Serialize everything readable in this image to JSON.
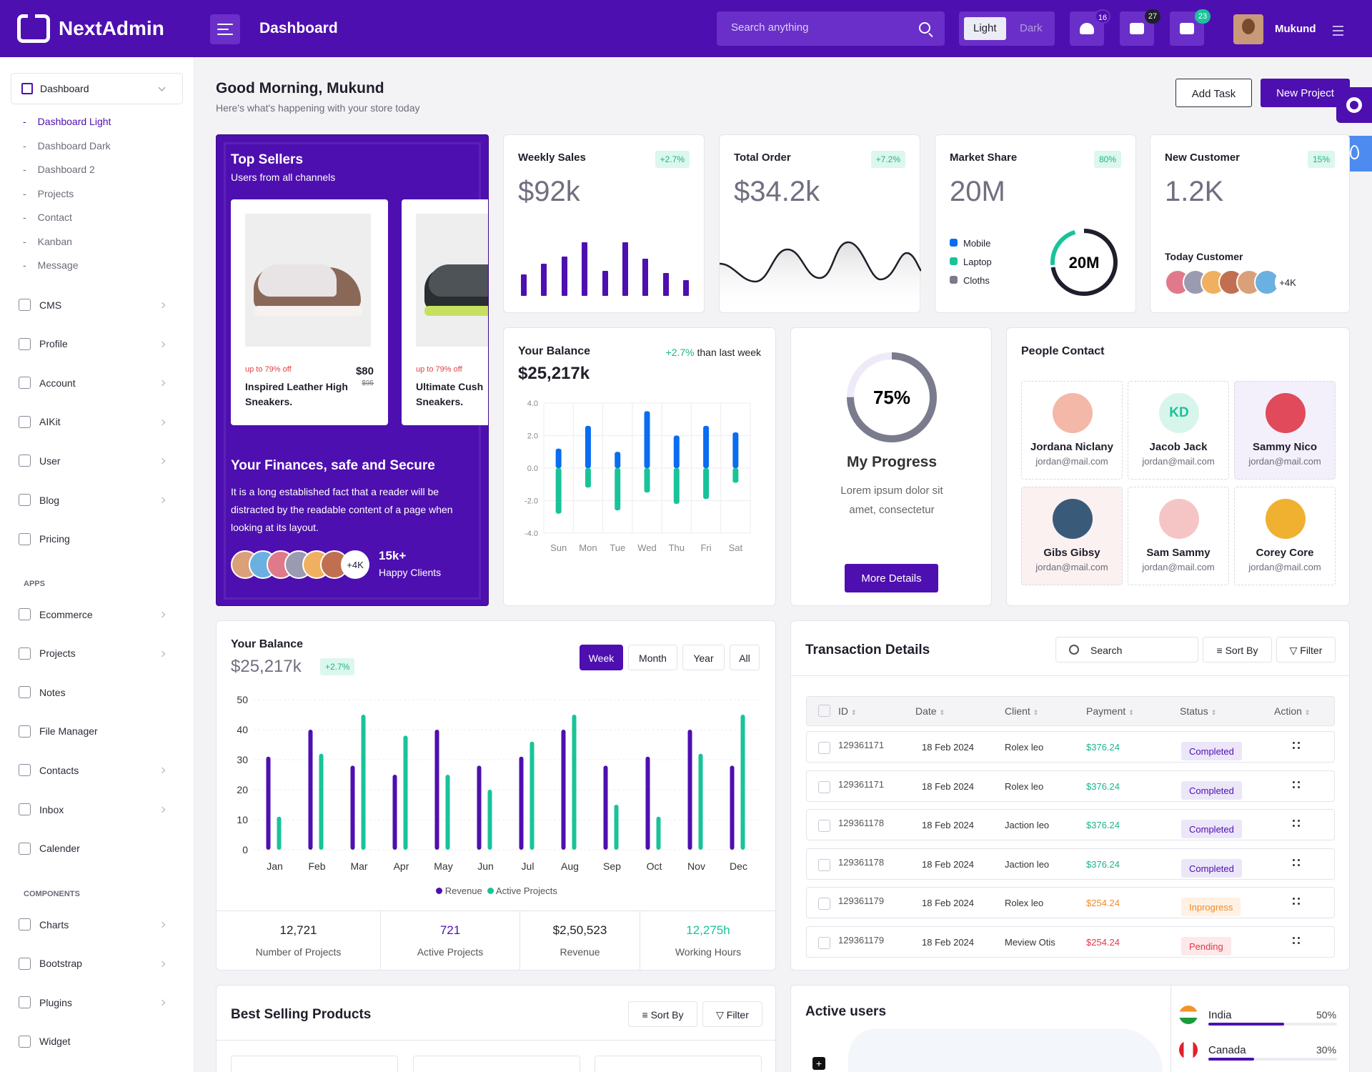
{
  "brand": {
    "name": "NextAdmin"
  },
  "header": {
    "title": "Dashboard",
    "search_placeholder": "Search anything",
    "theme_light": "Light",
    "theme_dark": "Dark",
    "notifications": "16",
    "messages": "27",
    "calendar": "23",
    "user": "Mukund"
  },
  "sidebar": {
    "selected": "Dashboard",
    "sub": [
      "Dashboard Light",
      "Dashboard Dark",
      "Dashboard 2",
      "Projects",
      "Contact",
      "Kanban",
      "Message"
    ],
    "main": [
      "CMS",
      "Profile",
      "Account",
      "AIKit",
      "User",
      "Blog",
      "Pricing"
    ],
    "apps_label": "APPS",
    "apps": [
      "Ecommerce",
      "Projects",
      "Notes",
      "File Manager",
      "Contacts",
      "Inbox",
      "Calender"
    ],
    "comp_label": "COMPONENTS",
    "components": [
      "Charts",
      "Bootstrap",
      "Plugins",
      "Widget"
    ]
  },
  "page": {
    "greeting": "Good Morning, Mukund",
    "subtitle": "Here's what's happening with your store today",
    "add_task": "Add Task",
    "new_project": "New Project"
  },
  "top_sellers": {
    "title": "Top Sellers",
    "subtitle": "Users from all channels",
    "products": [
      {
        "off": "up to 79% off",
        "price": "$80",
        "old": "$95",
        "name": "Inspired Leather High Sneakers."
      },
      {
        "off": "up to 79% off",
        "name": "Ultimate Cush Sneakers."
      }
    ],
    "fin_title": "Your Finances, safe and Secure",
    "fin_text": "It is a long established fact that a reader will be distracted by the readable content of a page when looking at its layout.",
    "more": "+4K",
    "clients_count": "15k+",
    "clients_label": "Happy Clients"
  },
  "stats": [
    {
      "title": "Weekly Sales",
      "badge": "+2.7%",
      "value": "$92k"
    },
    {
      "title": "Total Order",
      "badge": "+7.2%",
      "value": "$34.2k"
    },
    {
      "title": "Market Share",
      "badge": "80%",
      "value": "20M",
      "legend": [
        "Mobile",
        "Laptop",
        "Cloths"
      ],
      "donut": "20M"
    },
    {
      "title": "New Customer",
      "badge": "15%",
      "value": "1.2K",
      "today": "Today Customer",
      "more": "+4K"
    }
  ],
  "weekly_sales_bars": [
    {
      "value": 0.3
    },
    {
      "value": 0.45
    },
    {
      "value": 0.55
    },
    {
      "value": 0.75
    },
    {
      "value": 0.35
    },
    {
      "value": 0.75
    },
    {
      "value": 0.52
    },
    {
      "value": 0.32
    },
    {
      "value": 0.22
    }
  ],
  "balance_small": {
    "title": "Your Balance",
    "change": "+2.7%",
    "change_text": "than last week",
    "value": "$25,217k"
  },
  "chart_data": [
    {
      "type": "bar",
      "name": "balance-weekly",
      "categories": [
        "Sun",
        "Mon",
        "Tue",
        "Wed",
        "Thu",
        "Fri",
        "Sat"
      ],
      "series": [
        {
          "values": [
            1.2,
            2.6,
            1.0,
            3.5,
            2.0,
            2.6,
            2.2
          ]
        },
        {
          "values": [
            -2.8,
            -1.2,
            -2.6,
            -1.5,
            -2.2,
            -1.9,
            -0.9
          ]
        }
      ],
      "yticks": [
        "4.0",
        "2.0",
        "0.0",
        "-2.0",
        "-4.0"
      ],
      "ylim": [
        -4,
        4
      ]
    },
    {
      "type": "bar",
      "name": "balance-monthly",
      "categories": [
        "Jan",
        "Feb",
        "Mar",
        "Apr",
        "May",
        "Jun",
        "Jul",
        "Aug",
        "Sep",
        "Oct",
        "Nov",
        "Dec"
      ],
      "series": [
        {
          "name": "Revenue",
          "values": [
            31,
            40,
            28,
            25,
            40,
            28,
            31,
            40,
            28,
            31,
            40,
            28
          ]
        },
        {
          "name": "Active Projects",
          "values": [
            11,
            32,
            45,
            38,
            25,
            20,
            36,
            45,
            15,
            11,
            32,
            45
          ]
        }
      ],
      "yticks": [
        "50",
        "40",
        "30",
        "20",
        "10",
        "0"
      ],
      "ylim": [
        0,
        50
      ]
    }
  ],
  "progress": {
    "percent_value": 75,
    "percent": "75%",
    "title": "My Progress",
    "text": "Lorem ipsum dolor sit amet, consectetur",
    "button": "More Details"
  },
  "people": {
    "title": "People Contact",
    "list": [
      {
        "name": "Jordana Niclany",
        "email": "jordan@mail.com"
      },
      {
        "name": "Jacob Jack",
        "email": "jordan@mail.com",
        "initials": "KD"
      },
      {
        "name": "Sammy Nico",
        "email": "jordan@mail.com"
      },
      {
        "name": "Gibs Gibsy",
        "email": "jordan@mail.com"
      },
      {
        "name": "Sam Sammy",
        "email": "jordan@mail.com"
      },
      {
        "name": "Corey Core",
        "email": "jordan@mail.com"
      }
    ]
  },
  "balance_big": {
    "title": "Your Balance",
    "value": "$25,217k",
    "badge": "+2.7%",
    "tabs": [
      "Week",
      "Month",
      "Year",
      "All"
    ],
    "legend": [
      "Revenue",
      "Active Projects"
    ],
    "stats": [
      {
        "value": "12,721",
        "label": "Number of Projects"
      },
      {
        "value": "721",
        "label": "Active Projects"
      },
      {
        "value": "$2,50,523",
        "label": "Revenue"
      },
      {
        "value": "12,275h",
        "label": "Working Hours"
      }
    ]
  },
  "transactions": {
    "title": "Transaction Details",
    "search": "Search",
    "sort": "Sort By",
    "filter": "Filter",
    "columns": [
      "ID",
      "Date",
      "Client",
      "Payment",
      "Status",
      "Action"
    ],
    "rows": [
      {
        "id": "129361171",
        "date": "18 Feb 2024",
        "client": "Rolex leo",
        "payment": "$376.24",
        "status": "Completed"
      },
      {
        "id": "129361171",
        "date": "18 Feb 2024",
        "client": "Rolex leo",
        "payment": "$376.24",
        "status": "Completed"
      },
      {
        "id": "129361178",
        "date": "18 Feb 2024",
        "client": "Jaction leo",
        "payment": "$376.24",
        "status": "Completed"
      },
      {
        "id": "129361178",
        "date": "18 Feb 2024",
        "client": "Jaction leo",
        "payment": "$376.24",
        "status": "Completed"
      },
      {
        "id": "129361179",
        "date": "18 Feb 2024",
        "client": "Rolex leo",
        "payment": "$254.24",
        "status": "Inprogress"
      },
      {
        "id": "129361179",
        "date": "18 Feb 2024",
        "client": "Meview Otis",
        "payment": "$254.24",
        "status": "Pending"
      }
    ]
  },
  "best": {
    "title": "Best Selling Products",
    "sort": "Sort By",
    "filter": "Filter"
  },
  "active_users": {
    "title": "Active users",
    "countries": [
      {
        "name": "India",
        "pct": "50%",
        "value": 0.5
      },
      {
        "name": "Canada",
        "pct": "30%",
        "value": 0.3
      }
    ]
  },
  "colors": {
    "brand": "#4e0fb0",
    "green": "#19c39a",
    "blue": "#0a6cf0"
  }
}
